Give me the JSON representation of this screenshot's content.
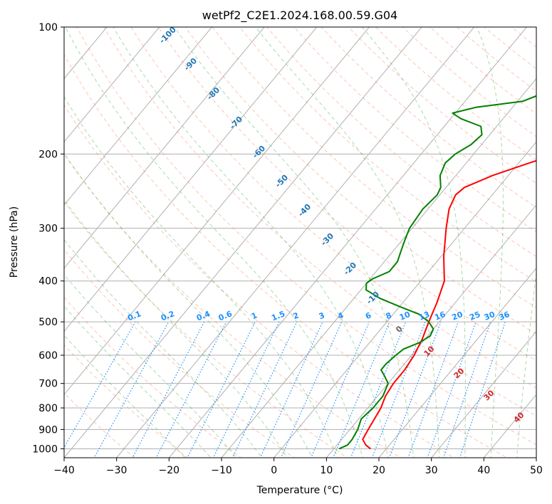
{
  "chart_data": {
    "type": "line",
    "title": "wetPf2_C2E1.2024.168.00.59.G04",
    "xlabel": "Temperature (°C)",
    "ylabel": "Pressure (hPa)",
    "xlim": [
      -40,
      50
    ],
    "ylim": [
      1050,
      100
    ],
    "y_scale": "log",
    "x_ticks": [
      -40,
      -30,
      -20,
      -10,
      0,
      10,
      20,
      30,
      40,
      50
    ],
    "y_ticks": [
      1000,
      900,
      800,
      700,
      600,
      500,
      400,
      300,
      200,
      100
    ],
    "grid": true,
    "series": [
      {
        "color": "#ff0000",
        "points": [
          {
            "p": 1000,
            "t": 17
          },
          {
            "p": 980,
            "t": 15.5
          },
          {
            "p": 950,
            "t": 14
          },
          {
            "p": 900,
            "t": 13.5
          },
          {
            "p": 850,
            "t": 13
          },
          {
            "p": 800,
            "t": 12.5
          },
          {
            "p": 750,
            "t": 11.5
          },
          {
            "p": 700,
            "t": 11
          },
          {
            "p": 650,
            "t": 11
          },
          {
            "p": 600,
            "t": 10.5
          },
          {
            "p": 550,
            "t": 9.5
          },
          {
            "p": 500,
            "t": 8
          },
          {
            "p": 450,
            "t": 6.5
          },
          {
            "p": 400,
            "t": 4.5
          },
          {
            "p": 350,
            "t": 0.5
          },
          {
            "p": 300,
            "t": -3.5
          },
          {
            "p": 270,
            "t": -6
          },
          {
            "p": 250,
            "t": -7
          },
          {
            "p": 240,
            "t": -6.5
          },
          {
            "p": 225,
            "t": -3
          },
          {
            "p": 210,
            "t": 2
          },
          {
            "p": 200,
            "t": 6
          },
          {
            "p": 190,
            "t": 8.5
          },
          {
            "p": 175,
            "t": 11
          },
          {
            "p": 160,
            "t": 13
          },
          {
            "p": 150,
            "t": 13
          },
          {
            "p": 140,
            "t": 13.5
          },
          {
            "p": 130,
            "t": 15.5
          },
          {
            "p": 120,
            "t": 17
          },
          {
            "p": 110,
            "t": 18.5
          },
          {
            "p": 100,
            "t": 20
          }
        ]
      },
      {
        "color": "#008000",
        "points": [
          {
            "p": 1000,
            "t": 11
          },
          {
            "p": 980,
            "t": 12
          },
          {
            "p": 950,
            "t": 12
          },
          {
            "p": 900,
            "t": 11.5
          },
          {
            "p": 850,
            "t": 10.5
          },
          {
            "p": 800,
            "t": 11
          },
          {
            "p": 750,
            "t": 11
          },
          {
            "p": 700,
            "t": 10
          },
          {
            "p": 670,
            "t": 8
          },
          {
            "p": 650,
            "t": 6.5
          },
          {
            "p": 630,
            "t": 6.5
          },
          {
            "p": 600,
            "t": 7
          },
          {
            "p": 580,
            "t": 7.5
          },
          {
            "p": 560,
            "t": 9.5
          },
          {
            "p": 540,
            "t": 10.5
          },
          {
            "p": 520,
            "t": 10
          },
          {
            "p": 500,
            "t": 8
          },
          {
            "p": 480,
            "t": 5
          },
          {
            "p": 460,
            "t": 0
          },
          {
            "p": 440,
            "t": -5
          },
          {
            "p": 420,
            "t": -9
          },
          {
            "p": 405,
            "t": -10
          },
          {
            "p": 395,
            "t": -9.5
          },
          {
            "p": 380,
            "t": -7.5
          },
          {
            "p": 360,
            "t": -7.5
          },
          {
            "p": 340,
            "t": -8.5
          },
          {
            "p": 320,
            "t": -9.5
          },
          {
            "p": 300,
            "t": -10.5
          },
          {
            "p": 270,
            "t": -11
          },
          {
            "p": 250,
            "t": -10.5
          },
          {
            "p": 240,
            "t": -11
          },
          {
            "p": 225,
            "t": -13
          },
          {
            "p": 210,
            "t": -14
          },
          {
            "p": 200,
            "t": -13.5
          },
          {
            "p": 190,
            "t": -12
          },
          {
            "p": 180,
            "t": -11.5
          },
          {
            "p": 172,
            "t": -13
          },
          {
            "p": 165,
            "t": -18
          },
          {
            "p": 160,
            "t": -20.5
          },
          {
            "p": 155,
            "t": -17
          },
          {
            "p": 150,
            "t": -9
          },
          {
            "p": 145,
            "t": -7
          },
          {
            "p": 140,
            "t": -6.5
          },
          {
            "p": 130,
            "t": -7
          },
          {
            "p": 120,
            "t": -7.5
          },
          {
            "p": 110,
            "t": -4.5
          },
          {
            "p": 100,
            "t": -1
          }
        ]
      }
    ],
    "dry_adiabat_labels": [
      "-100",
      "-90",
      "-80",
      "-70",
      "-60",
      "-50",
      "-40",
      "-30",
      "-20",
      "-10"
    ],
    "mixing_ratio_labels": [
      "0.1",
      "0.2",
      "0.4",
      "0.6",
      "1",
      "1.5",
      "2",
      "3",
      "4",
      "6",
      "8",
      "10",
      "13",
      "16",
      "20",
      "25",
      "30",
      "36"
    ],
    "moist_adiabat_labels": [
      "0",
      "10",
      "20",
      "30",
      "40"
    ],
    "colors": {
      "temperature": "#ff0000",
      "dewpoint": "#008000",
      "isotherm": "#808080",
      "dry_adiabat": "#ff7f50",
      "moist_adiabat": "#2ca02c",
      "mixing_ratio": "#1e90ff",
      "dry_label": "#1f77b4",
      "moist_label": "#d62728"
    }
  }
}
